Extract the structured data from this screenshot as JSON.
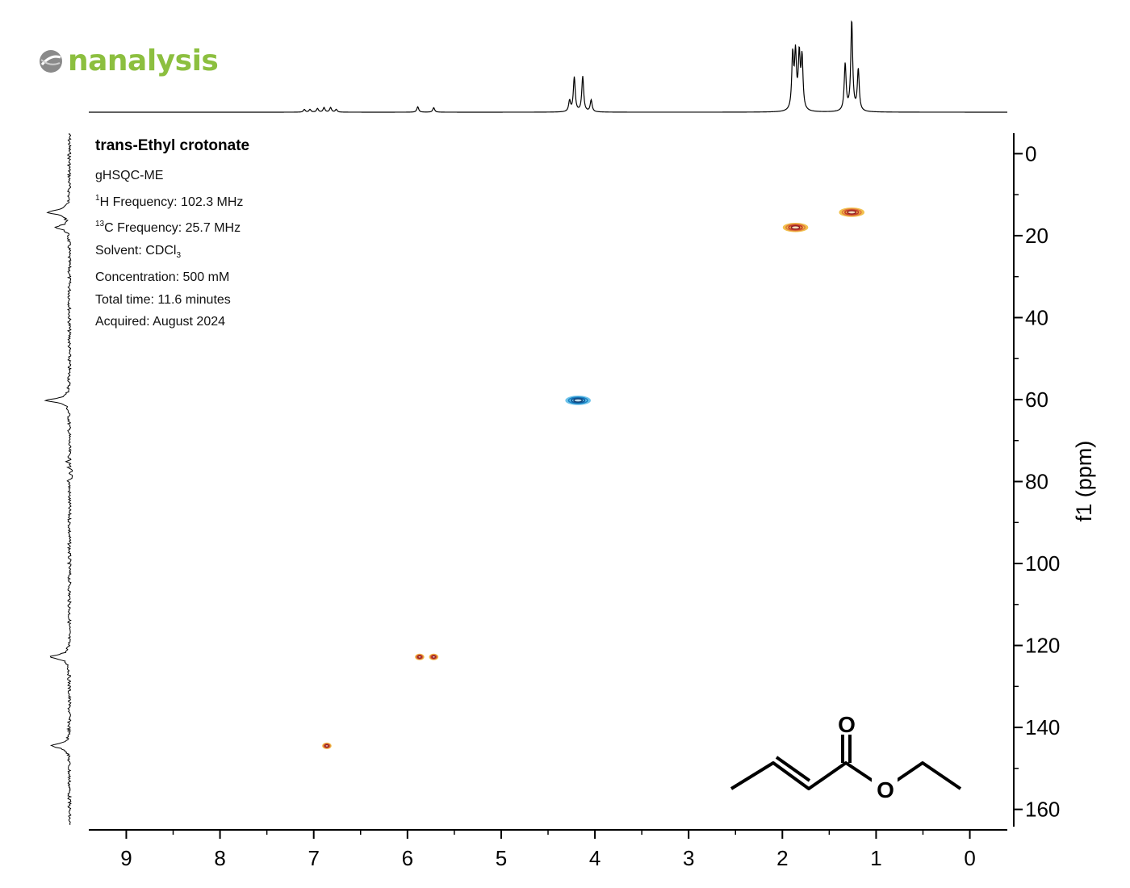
{
  "logo": {
    "text": "nanalysis",
    "color": "#8cbf3f"
  },
  "info": {
    "title": "trans-Ethyl crotonate",
    "experiment": "gHSQC-ME",
    "h_freq_sup": "1",
    "h_freq_rest": "H Frequency: 102.3 MHz",
    "c_freq_sup": "13",
    "c_freq_rest": "C Frequency: 25.7 MHz",
    "solvent_main": "Solvent: CDCl",
    "solvent_sub": "3",
    "concentration": "Concentration: 500 mM",
    "total_time": "Total time: 11.6 minutes",
    "acquired": "Acquired: August 2024"
  },
  "molecule": {
    "oxygen_label": "O"
  },
  "chart_data": {
    "type": "heatmap",
    "subtype": "2D HSQC NMR contour plot",
    "xlabel": "",
    "ylabel": "f1 (ppm)",
    "xlim": [
      9.4,
      -0.4
    ],
    "ylim": [
      -5,
      165
    ],
    "x_ticks": [
      9,
      8,
      7,
      6,
      5,
      4,
      3,
      2,
      1,
      0
    ],
    "y_ticks": [
      0,
      20,
      40,
      60,
      80,
      100,
      120,
      140,
      160
    ],
    "phase_colors": {
      "positive": "#c0392b",
      "negative": "#1b86c6"
    },
    "cross_peaks": [
      {
        "h": 1.86,
        "c": 18.0,
        "sign": "positive"
      },
      {
        "h": 1.26,
        "c": 14.3,
        "sign": "positive"
      },
      {
        "h": 4.18,
        "c": 60.2,
        "sign": "negative"
      },
      {
        "h": 5.87,
        "c": 122.8,
        "sign": "positive"
      },
      {
        "h": 5.72,
        "c": 122.8,
        "sign": "positive"
      },
      {
        "h": 6.86,
        "c": 144.5,
        "sign": "positive"
      }
    ],
    "h1_projection_peaks": [
      {
        "ppm": 7.1,
        "height": 0.03
      },
      {
        "ppm": 7.04,
        "height": 0.03
      },
      {
        "ppm": 6.96,
        "height": 0.04
      },
      {
        "ppm": 6.89,
        "height": 0.05
      },
      {
        "ppm": 6.82,
        "height": 0.05
      },
      {
        "ppm": 6.76,
        "height": 0.03
      },
      {
        "ppm": 5.89,
        "height": 0.06
      },
      {
        "ppm": 5.72,
        "height": 0.05
      },
      {
        "ppm": 4.27,
        "height": 0.12
      },
      {
        "ppm": 4.22,
        "height": 0.38
      },
      {
        "ppm": 4.13,
        "height": 0.39
      },
      {
        "ppm": 4.04,
        "height": 0.13
      },
      {
        "ppm": 1.89,
        "height": 0.6
      },
      {
        "ppm": 1.86,
        "height": 0.6
      },
      {
        "ppm": 1.82,
        "height": 0.59
      },
      {
        "ppm": 1.79,
        "height": 0.57
      },
      {
        "ppm": 1.33,
        "height": 0.52
      },
      {
        "ppm": 1.26,
        "height": 1.0
      },
      {
        "ppm": 1.19,
        "height": 0.46
      }
    ],
    "c13_projection_peaks": [
      {
        "ppm": 14.3,
        "height": 0.5
      },
      {
        "ppm": 18.0,
        "height": 0.28
      },
      {
        "ppm": 60.2,
        "height": 0.5
      },
      {
        "ppm": 122.8,
        "height": 0.45
      },
      {
        "ppm": 144.5,
        "height": 0.4
      }
    ]
  }
}
